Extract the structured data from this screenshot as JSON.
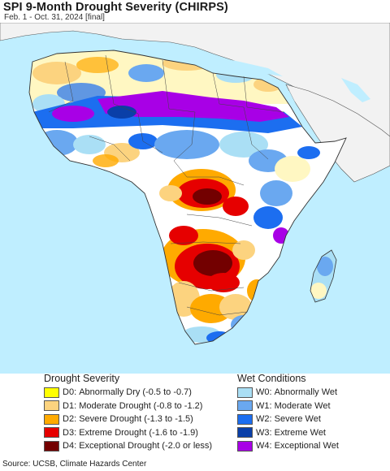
{
  "header": {
    "title": "SPI 9-Month Drought Severity (CHIRPS)",
    "subtitle": "Feb. 1 - Oct. 31, 2024 [final]"
  },
  "map": {
    "region": "Africa and Arabian Peninsula",
    "ocean_color": "#bfeeff",
    "no_data_land_color": "#f2f2f2",
    "background_neutral_color": "#ffffff"
  },
  "legend": {
    "drought": {
      "heading": "Drought Severity",
      "items": [
        {
          "code": "D0",
          "label": "Abnormally Dry (-0.5 to -0.7)",
          "color": "#ffff00"
        },
        {
          "code": "D1",
          "label": "Moderate Drought (-0.8 to -1.2)",
          "color": "#fcd37f"
        },
        {
          "code": "D2",
          "label": "Severe Drought (-1.3 to -1.5)",
          "color": "#ffaa00"
        },
        {
          "code": "D3",
          "label": "Extreme Drought (-1.6 to -1.9)",
          "color": "#e60000"
        },
        {
          "code": "D4",
          "label": "Exceptional Drought (-2.0 or less)",
          "color": "#730000"
        }
      ]
    },
    "wet": {
      "heading": "Wet Conditions",
      "items": [
        {
          "code": "W0",
          "label": "Abnormally Wet",
          "color": "#aadff5"
        },
        {
          "code": "W1",
          "label": "Moderate Wet",
          "color": "#6aa8f0"
        },
        {
          "code": "W2",
          "label": "Severe Wet",
          "color": "#1c6ef0"
        },
        {
          "code": "W3",
          "label": "Extreme Wet",
          "color": "#0a3fa8"
        },
        {
          "code": "W4",
          "label": "Exceptional Wet",
          "color": "#a800e6"
        }
      ]
    }
  },
  "footer": {
    "source": "Source: UCSB, Climate Hazards Center"
  }
}
